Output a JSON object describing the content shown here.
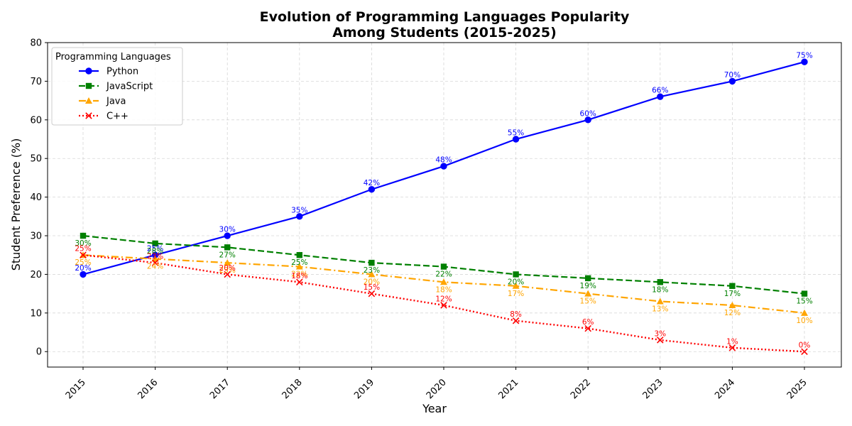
{
  "chart_data": {
    "type": "line",
    "title": [
      "Evolution of Programming Languages Popularity",
      "Among Students (2015-2025)"
    ],
    "xlabel": "Year",
    "ylabel": "Student Preference (%)",
    "ylim": [
      -4,
      80
    ],
    "yticks": [
      0,
      10,
      20,
      30,
      40,
      50,
      60,
      70,
      80
    ],
    "x": [
      "2015",
      "2016",
      "2017",
      "2018",
      "2019",
      "2020",
      "2021",
      "2022",
      "2023",
      "2024",
      "2025"
    ],
    "grid": true,
    "legend": {
      "title": "Programming Languages",
      "placement": "top-left"
    },
    "label_suffix": "%",
    "series": [
      {
        "name": "Python",
        "values": [
          20,
          25,
          30,
          35,
          42,
          48,
          55,
          60,
          66,
          70,
          75
        ],
        "color": "#0000ff",
        "dash": "",
        "marker": "circle",
        "label_pos": "above"
      },
      {
        "name": "JavaScript",
        "values": [
          30,
          28,
          27,
          25,
          23,
          22,
          20,
          19,
          18,
          17,
          15
        ],
        "color": "#008000",
        "dash": "9,4",
        "marker": "square",
        "label_pos": "below"
      },
      {
        "name": "Java",
        "values": [
          25,
          24,
          23,
          22,
          20,
          18,
          17,
          15,
          13,
          12,
          10
        ],
        "color": "#ffa500",
        "dash": "10,4,2,4",
        "marker": "triangle",
        "label_pos": "below"
      },
      {
        "name": "C++",
        "values": [
          25,
          23,
          20,
          18,
          15,
          12,
          8,
          6,
          3,
          1,
          0
        ],
        "color": "#ff0000",
        "dash": "2,3",
        "marker": "x",
        "label_pos": "above"
      }
    ]
  }
}
